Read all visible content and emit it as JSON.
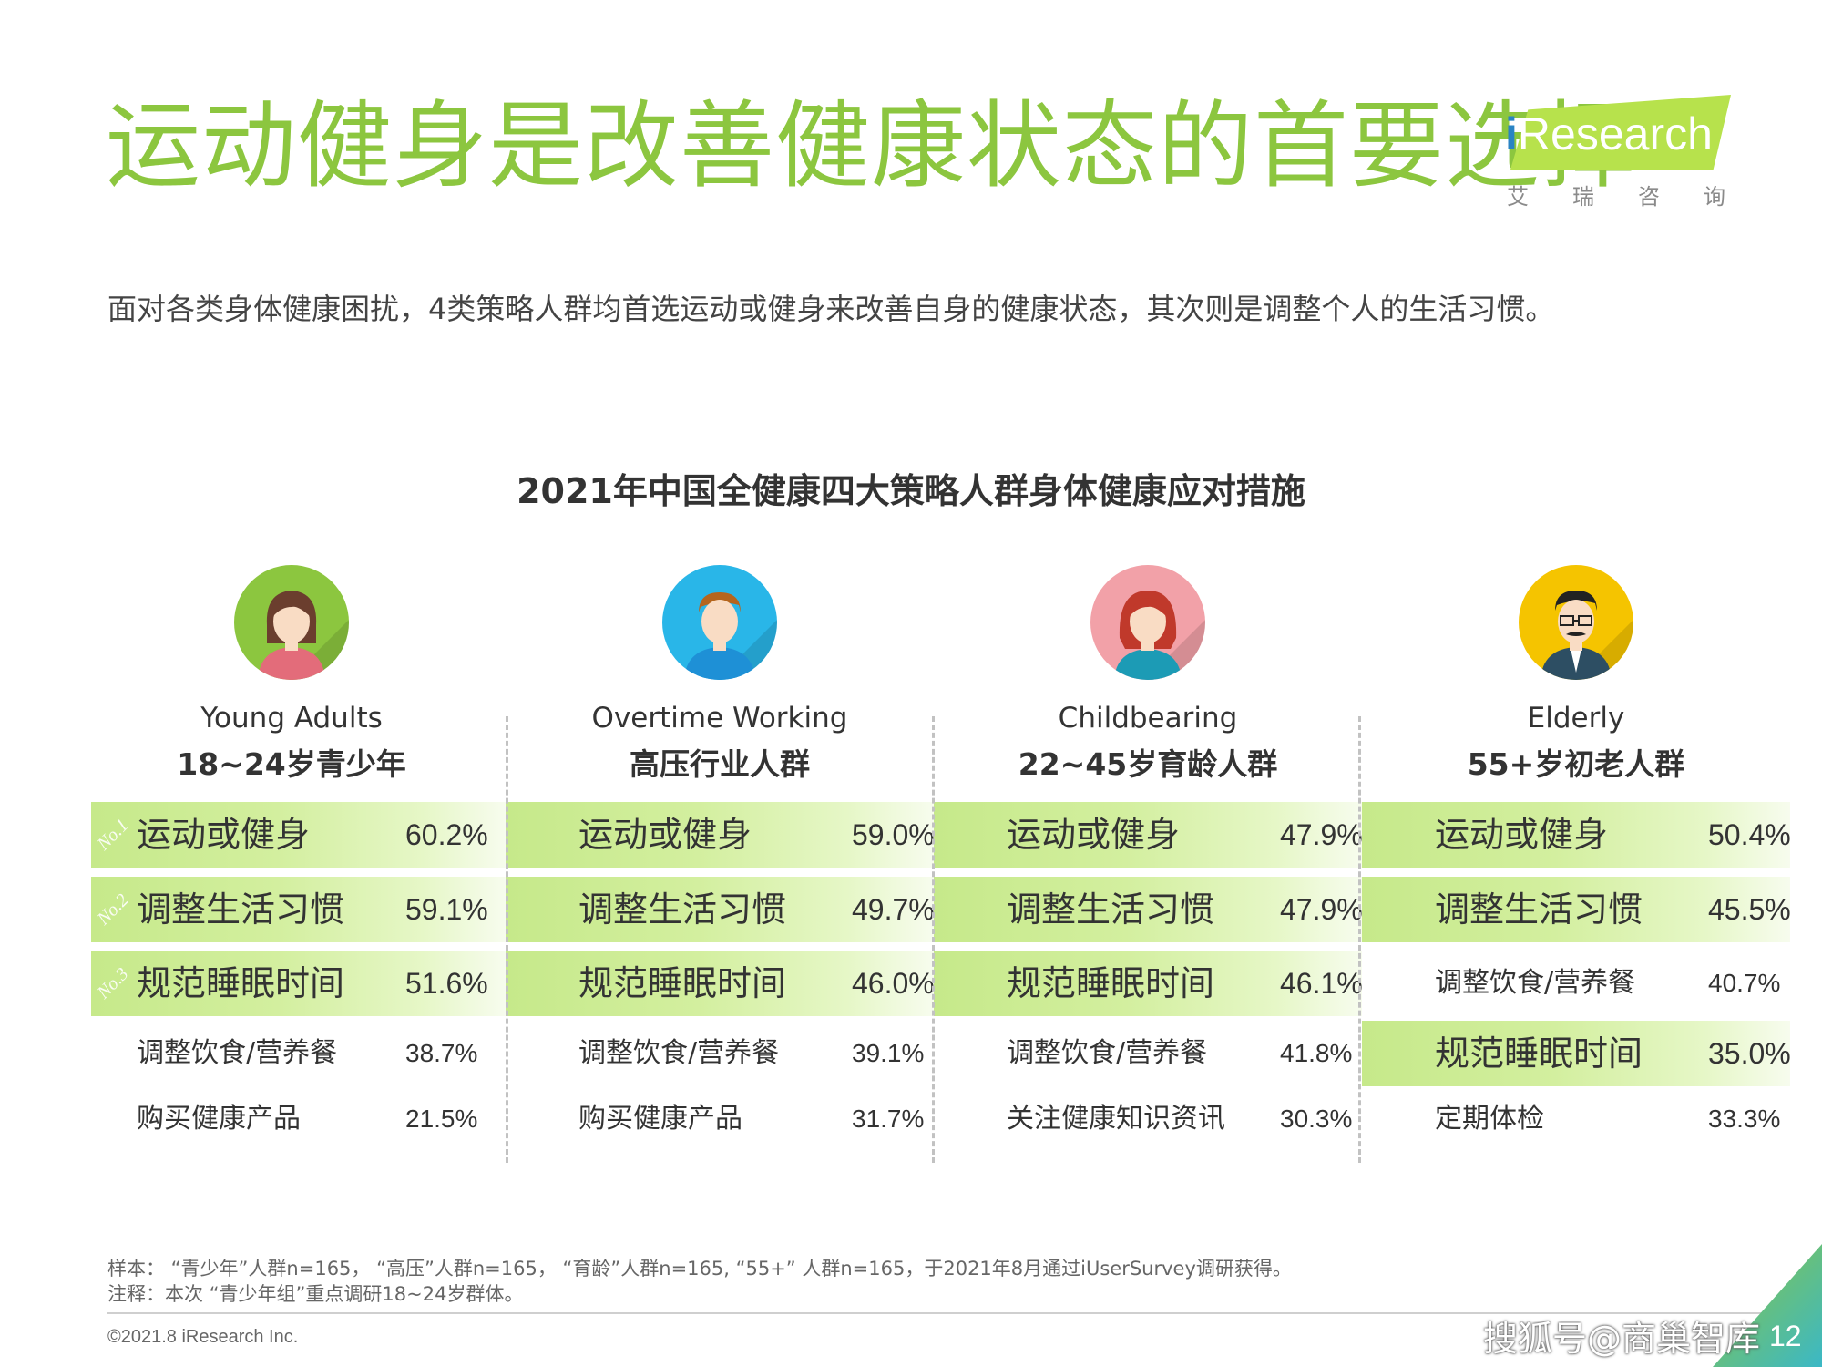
{
  "title": "运动健身是改善健康状态的首要选择",
  "logo": {
    "brand_i": "i",
    "brand_rest": "Research",
    "cn": [
      "艾",
      "瑞",
      "咨",
      "询"
    ]
  },
  "subtitle": "面对各类身体健康困扰，4类策略人群均首选运动或健身来改善自身的健康状态，其次则是调整个人的生活习惯。",
  "chart_title": "2021年中国全健康四大策略人群身体健康应对措施",
  "rank_labels": [
    "No.1",
    "No.2",
    "No.3"
  ],
  "colors": {
    "title_green": "#8cc63f",
    "highlight_green": "#c6e98a"
  },
  "chart_data": {
    "type": "table",
    "title": "2021年中国全健康四大策略人群身体健康应对措施",
    "groups": [
      {
        "name_en": "Young Adults",
        "name_cn": "18~24岁青少年",
        "avatar_icon": "young-woman-icon",
        "items": [
          {
            "label": "运动或健身",
            "value": "60.2%"
          },
          {
            "label": "调整生活习惯",
            "value": "59.1%"
          },
          {
            "label": "规范睡眠时间",
            "value": "51.6%"
          },
          {
            "label": "调整饮食/营养餐",
            "value": "38.7%"
          },
          {
            "label": "购买健康产品",
            "value": "21.5%"
          }
        ]
      },
      {
        "name_en": "Overtime Working",
        "name_cn": "高压行业人群",
        "avatar_icon": "man-icon",
        "items": [
          {
            "label": "运动或健身",
            "value": "59.0%"
          },
          {
            "label": "调整生活习惯",
            "value": "49.7%"
          },
          {
            "label": "规范睡眠时间",
            "value": "46.0%"
          },
          {
            "label": "调整饮食/营养餐",
            "value": "39.1%"
          },
          {
            "label": "购买健康产品",
            "value": "31.7%"
          }
        ]
      },
      {
        "name_en": "Childbearing",
        "name_cn": "22~45岁育龄人群",
        "avatar_icon": "woman-icon",
        "items": [
          {
            "label": "运动或健身",
            "value": "47.9%"
          },
          {
            "label": "调整生活习惯",
            "value": "47.9%"
          },
          {
            "label": "规范睡眠时间",
            "value": "46.1%"
          },
          {
            "label": "调整饮食/营养餐",
            "value": "41.8%"
          },
          {
            "label": "关注健康知识资讯",
            "value": "30.3%"
          }
        ]
      },
      {
        "name_en": "Elderly",
        "name_cn": "55+岁初老人群",
        "avatar_icon": "older-man-icon",
        "items": [
          {
            "label": "运动或健身",
            "value": "50.4%"
          },
          {
            "label": "调整生活习惯",
            "value": "45.5%"
          },
          {
            "label": "调整饮食/营养餐",
            "value": "40.7%"
          },
          {
            "label": "规范睡眠时间",
            "value": "35.0%"
          },
          {
            "label": "定期体检",
            "value": "33.3%"
          }
        ]
      }
    ]
  },
  "notes": [
    "样本：  “青少年”人群n=165，  “高压”人群n=165，  “育龄”人群n=165,  “55+”  人群n=165，于2021年8月通过iUserSurvey调研获得。",
    "注释：本次  “青少年组”重点调研18~24岁群体。"
  ],
  "copyright": "©2021.8 iResearch Inc.",
  "watermark": "搜狐号@商巢智库",
  "page_number": "12"
}
